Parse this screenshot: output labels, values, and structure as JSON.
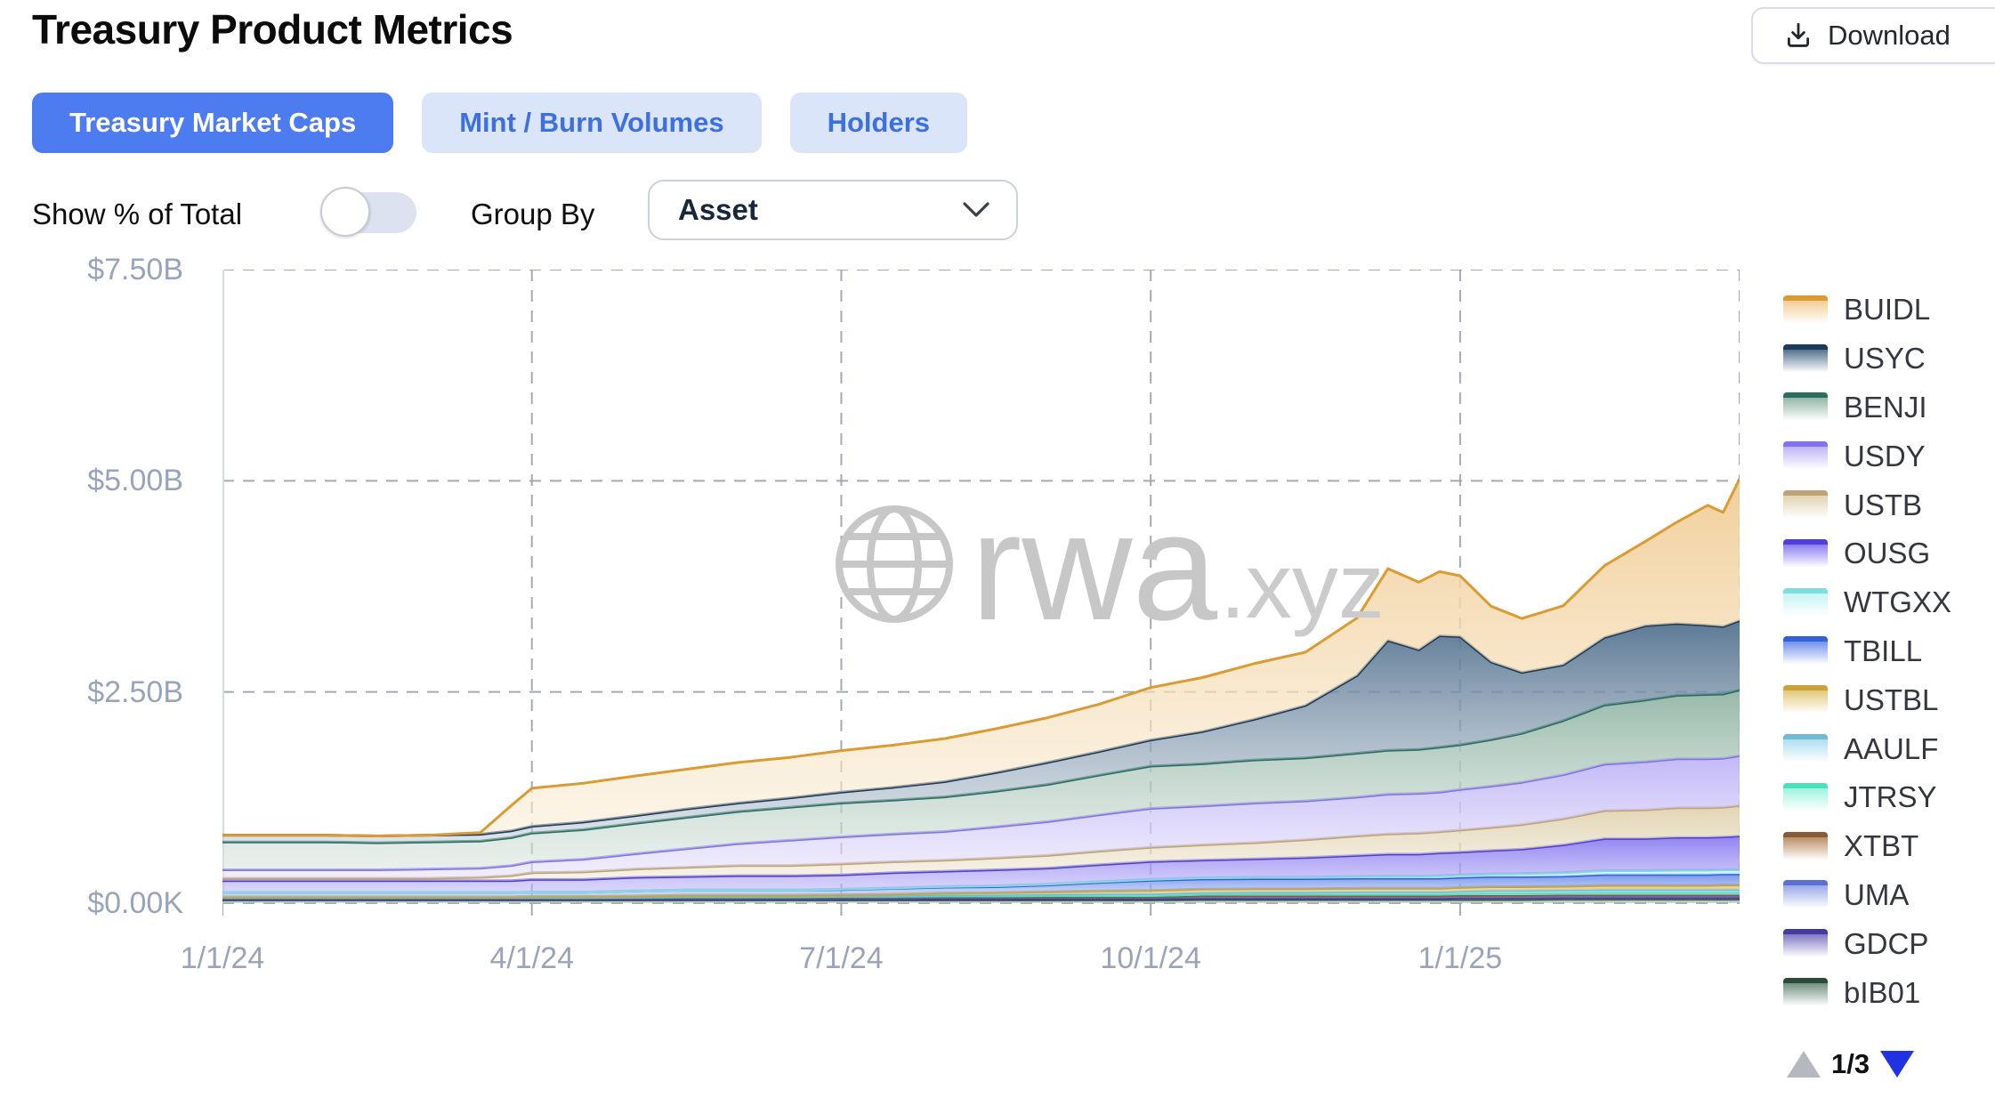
{
  "page_title": "Treasury Product Metrics",
  "header": {
    "download_label": "Download"
  },
  "tabs": [
    {
      "label": "Treasury Market Caps",
      "active": true
    },
    {
      "label": "Mint / Burn Volumes",
      "active": false
    },
    {
      "label": "Holders",
      "active": false
    }
  ],
  "controls": {
    "toggle_label": "Show % of Total",
    "toggle_on": false,
    "group_by_label": "Group By",
    "group_by_value": "Asset"
  },
  "watermark": {
    "brand": "rwa",
    "suffix": ".xyz"
  },
  "legend": {
    "items": [
      {
        "label": "BUIDL",
        "color": "#db9b32",
        "fill_top": "#f1cd96",
        "fill_bottom": "#f9ecd4"
      },
      {
        "label": "USYC",
        "color": "#1c3a5e",
        "fill_top": "#54738f",
        "fill_bottom": "#c2cdd8"
      },
      {
        "label": "BENJI",
        "color": "#2a6e5e",
        "fill_top": "#93b6a7",
        "fill_bottom": "#d8e4dc"
      },
      {
        "label": "USDY",
        "color": "#8171ee",
        "fill_top": "#bfb5f6",
        "fill_bottom": "#e4e0fb"
      },
      {
        "label": "USTB",
        "color": "#bfa376",
        "fill_top": "#e0d3b0",
        "fill_bottom": "#f0e9d6"
      },
      {
        "label": "OUSG",
        "color": "#4e3fd8",
        "fill_top": "#8b7df0",
        "fill_bottom": "#beb6f7"
      },
      {
        "label": "WTGXX",
        "color": "#7edede",
        "fill_top": "#c6f4f4",
        "fill_bottom": "#e6fbfb"
      },
      {
        "label": "TBILL",
        "color": "#3160d8",
        "fill_top": "#7191ea",
        "fill_bottom": "#b0c1f4"
      },
      {
        "label": "USTBL",
        "color": "#c9a238",
        "fill_top": "#e3c97c",
        "fill_bottom": "#f1e4bf"
      },
      {
        "label": "AAULF",
        "color": "#70bad8",
        "fill_top": "#aedff0",
        "fill_bottom": "#daf2f9"
      },
      {
        "label": "JTRSY",
        "color": "#48e2ba",
        "fill_top": "#9ef4de",
        "fill_bottom": "#d6fbf1"
      },
      {
        "label": "XTBT",
        "color": "#8a5a36",
        "fill_top": "#bb8f68",
        "fill_bottom": "#decbb3"
      },
      {
        "label": "UMA",
        "color": "#5c70d2",
        "fill_top": "#9aa9e8",
        "fill_bottom": "#ccd4f4"
      },
      {
        "label": "GDCP",
        "color": "#453b9c",
        "fill_top": "#8078c6",
        "fill_bottom": "#bab4df"
      },
      {
        "label": "bIB01",
        "color": "#2d4b3d",
        "fill_top": "#719180",
        "fill_bottom": "#b5c8bc"
      }
    ],
    "pagination": {
      "current_page": "1/3"
    }
  },
  "chart_data": {
    "type": "area",
    "stacked": true,
    "grid": "dashed",
    "legend_position": "right",
    "ylim": [
      0,
      7.5
    ],
    "x_max_months": 14.71,
    "x_unit": "months since 1/1/24",
    "y_ticks": [
      {
        "label": "$7.50B",
        "value": 7.5
      },
      {
        "label": "$5.00B",
        "value": 5.0
      },
      {
        "label": "$2.50B",
        "value": 2.5
      },
      {
        "label": "$0.00K",
        "value": 0.0
      }
    ],
    "x_ticks": [
      {
        "label": "1/1/24",
        "month": 0
      },
      {
        "label": "4/1/24",
        "month": 3
      },
      {
        "label": "7/1/24",
        "month": 6
      },
      {
        "label": "10/1/24",
        "month": 9
      },
      {
        "label": "1/1/25",
        "month": 12
      }
    ],
    "x": [
      0,
      0.5,
      1,
      1.5,
      2,
      2.5,
      2.8,
      3,
      3.5,
      4,
      4.5,
      5,
      5.5,
      6,
      6.5,
      7,
      7.5,
      8,
      8.5,
      9,
      9.5,
      10,
      10.5,
      11,
      11.3,
      11.6,
      11.8,
      12,
      12.3,
      12.6,
      13,
      13.4,
      13.8,
      14.1,
      14.4,
      14.55,
      14.71
    ],
    "unit": "USD billions",
    "series": [
      {
        "name": "BUIDL",
        "values": [
          0,
          0,
          0,
          0,
          0,
          0.02,
          0.3,
          0.45,
          0.46,
          0.47,
          0.47,
          0.48,
          0.48,
          0.49,
          0.5,
          0.51,
          0.52,
          0.53,
          0.56,
          0.62,
          0.64,
          0.66,
          0.63,
          0.68,
          0.85,
          0.8,
          0.76,
          0.72,
          0.66,
          0.64,
          0.7,
          0.85,
          1.0,
          1.2,
          1.42,
          1.35,
          1.68
        ]
      },
      {
        "name": "USYC",
        "values": [
          0.08,
          0.08,
          0.08,
          0.08,
          0.08,
          0.08,
          0.08,
          0.08,
          0.09,
          0.09,
          0.1,
          0.1,
          0.11,
          0.13,
          0.15,
          0.18,
          0.22,
          0.26,
          0.28,
          0.31,
          0.38,
          0.48,
          0.62,
          0.92,
          1.3,
          1.18,
          1.32,
          1.28,
          0.92,
          0.72,
          0.66,
          0.8,
          0.88,
          0.85,
          0.82,
          0.8,
          0.82
        ]
      },
      {
        "name": "BENJI",
        "values": [
          0.33,
          0.33,
          0.33,
          0.32,
          0.32,
          0.32,
          0.33,
          0.34,
          0.35,
          0.36,
          0.37,
          0.38,
          0.39,
          0.4,
          0.4,
          0.41,
          0.42,
          0.44,
          0.47,
          0.5,
          0.5,
          0.51,
          0.51,
          0.52,
          0.52,
          0.52,
          0.53,
          0.53,
          0.55,
          0.58,
          0.64,
          0.7,
          0.73,
          0.75,
          0.76,
          0.76,
          0.78
        ]
      },
      {
        "name": "USDY",
        "values": [
          0.1,
          0.1,
          0.1,
          0.1,
          0.11,
          0.11,
          0.12,
          0.13,
          0.15,
          0.18,
          0.22,
          0.26,
          0.3,
          0.32,
          0.33,
          0.34,
          0.37,
          0.4,
          0.43,
          0.46,
          0.46,
          0.47,
          0.46,
          0.46,
          0.47,
          0.47,
          0.47,
          0.48,
          0.49,
          0.5,
          0.52,
          0.55,
          0.57,
          0.58,
          0.58,
          0.58,
          0.59
        ]
      },
      {
        "name": "USTB",
        "values": [
          0.03,
          0.03,
          0.03,
          0.03,
          0.03,
          0.04,
          0.06,
          0.08,
          0.09,
          0.1,
          0.11,
          0.12,
          0.12,
          0.13,
          0.13,
          0.13,
          0.14,
          0.15,
          0.16,
          0.17,
          0.18,
          0.19,
          0.21,
          0.23,
          0.24,
          0.25,
          0.25,
          0.26,
          0.27,
          0.29,
          0.31,
          0.33,
          0.34,
          0.35,
          0.35,
          0.35,
          0.36
        ]
      },
      {
        "name": "OUSG",
        "values": [
          0.14,
          0.14,
          0.14,
          0.14,
          0.14,
          0.14,
          0.14,
          0.15,
          0.15,
          0.16,
          0.16,
          0.17,
          0.17,
          0.17,
          0.18,
          0.18,
          0.19,
          0.19,
          0.2,
          0.21,
          0.21,
          0.22,
          0.23,
          0.25,
          0.26,
          0.26,
          0.27,
          0.27,
          0.28,
          0.29,
          0.33,
          0.38,
          0.38,
          0.39,
          0.39,
          0.39,
          0.4
        ]
      },
      {
        "name": "WTGXX",
        "values": [
          0,
          0,
          0,
          0,
          0,
          0,
          0,
          0,
          0,
          0,
          0,
          0,
          0,
          0.005,
          0.005,
          0.008,
          0.01,
          0.01,
          0.01,
          0.012,
          0.015,
          0.015,
          0.02,
          0.02,
          0.025,
          0.025,
          0.03,
          0.03,
          0.03,
          0.035,
          0.04,
          0.045,
          0.045,
          0.05,
          0.05,
          0.05,
          0.05
        ]
      },
      {
        "name": "TBILL",
        "values": [
          0.05,
          0.05,
          0.05,
          0.05,
          0.05,
          0.05,
          0.05,
          0.05,
          0.05,
          0.06,
          0.06,
          0.06,
          0.06,
          0.06,
          0.07,
          0.07,
          0.07,
          0.08,
          0.1,
          0.12,
          0.12,
          0.12,
          0.12,
          0.12,
          0.12,
          0.12,
          0.12,
          0.12,
          0.12,
          0.12,
          0.12,
          0.13,
          0.13,
          0.13,
          0.13,
          0.13,
          0.13
        ]
      },
      {
        "name": "USTBL",
        "values": [
          0.005,
          0.005,
          0.005,
          0.005,
          0.005,
          0.005,
          0.005,
          0.01,
          0.01,
          0.01,
          0.01,
          0.01,
          0.01,
          0.01,
          0.015,
          0.02,
          0.025,
          0.03,
          0.035,
          0.04,
          0.04,
          0.04,
          0.04,
          0.04,
          0.04,
          0.04,
          0.04,
          0.045,
          0.045,
          0.045,
          0.045,
          0.05,
          0.05,
          0.05,
          0.05,
          0.055,
          0.055
        ]
      },
      {
        "name": "AAULF",
        "values": [
          0.005,
          0.005,
          0.005,
          0.005,
          0.005,
          0.005,
          0.005,
          0.005,
          0.005,
          0.005,
          0.01,
          0.01,
          0.01,
          0.01,
          0.01,
          0.015,
          0.015,
          0.015,
          0.02,
          0.02,
          0.02,
          0.02,
          0.02,
          0.025,
          0.025,
          0.025,
          0.025,
          0.025,
          0.03,
          0.03,
          0.03,
          0.03,
          0.03,
          0.03,
          0.03,
          0.03,
          0.03
        ]
      },
      {
        "name": "JTRSY",
        "values": [
          0,
          0,
          0,
          0,
          0,
          0,
          0,
          0,
          0,
          0.005,
          0.005,
          0.005,
          0.005,
          0.01,
          0.01,
          0.01,
          0.01,
          0.015,
          0.015,
          0.015,
          0.015,
          0.02,
          0.02,
          0.02,
          0.02,
          0.02,
          0.02,
          0.02,
          0.025,
          0.025,
          0.025,
          0.03,
          0.03,
          0.03,
          0.03,
          0.03,
          0.03
        ]
      },
      {
        "name": "XTBT",
        "values": [
          0.005,
          0.005,
          0.005,
          0.005,
          0.005,
          0.005,
          0.005,
          0.005,
          0.005,
          0.005,
          0.005,
          0.005,
          0.005,
          0.005,
          0.005,
          0.005,
          0.005,
          0.005,
          0.005,
          0.005,
          0.01,
          0.01,
          0.01,
          0.01,
          0.01,
          0.01,
          0.01,
          0.01,
          0.01,
          0.01,
          0.01,
          0.01,
          0.01,
          0.01,
          0.01,
          0.01,
          0.01
        ]
      },
      {
        "name": "UMA",
        "values": [
          0.01,
          0.01,
          0.01,
          0.01,
          0.01,
          0.01,
          0.01,
          0.01,
          0.01,
          0.01,
          0.015,
          0.015,
          0.015,
          0.015,
          0.015,
          0.015,
          0.015,
          0.015,
          0.015,
          0.015,
          0.02,
          0.02,
          0.02,
          0.02,
          0.02,
          0.02,
          0.02,
          0.02,
          0.02,
          0.02,
          0.02,
          0.02,
          0.02,
          0.02,
          0.02,
          0.02,
          0.02
        ]
      },
      {
        "name": "GDCP",
        "values": [
          0.01,
          0.01,
          0.01,
          0.01,
          0.01,
          0.01,
          0.01,
          0.01,
          0.01,
          0.01,
          0.01,
          0.01,
          0.01,
          0.01,
          0.01,
          0.015,
          0.015,
          0.015,
          0.015,
          0.015,
          0.015,
          0.015,
          0.015,
          0.015,
          0.015,
          0.015,
          0.015,
          0.02,
          0.02,
          0.02,
          0.02,
          0.02,
          0.02,
          0.02,
          0.02,
          0.02,
          0.02
        ]
      },
      {
        "name": "bIB01",
        "values": [
          0.04,
          0.04,
          0.04,
          0.04,
          0.04,
          0.04,
          0.04,
          0.04,
          0.04,
          0.04,
          0.04,
          0.04,
          0.04,
          0.04,
          0.04,
          0.04,
          0.04,
          0.04,
          0.04,
          0.04,
          0.045,
          0.045,
          0.045,
          0.045,
          0.045,
          0.045,
          0.045,
          0.045,
          0.045,
          0.045,
          0.05,
          0.05,
          0.05,
          0.05,
          0.05,
          0.05,
          0.05
        ]
      }
    ]
  }
}
